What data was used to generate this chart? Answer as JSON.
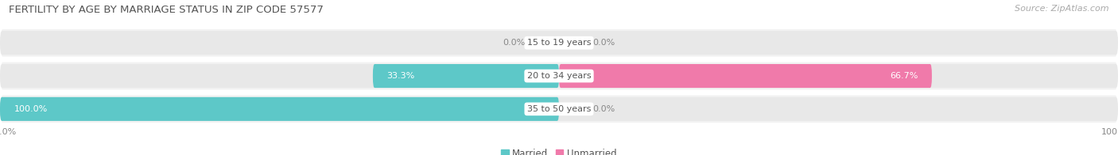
{
  "title": "FERTILITY BY AGE BY MARRIAGE STATUS IN ZIP CODE 57577",
  "source": "Source: ZipAtlas.com",
  "categories": [
    "15 to 19 years",
    "20 to 34 years",
    "35 to 50 years"
  ],
  "married_pct": [
    0.0,
    33.3,
    100.0
  ],
  "unmarried_pct": [
    0.0,
    66.7,
    0.0
  ],
  "married_color": "#5dc8c8",
  "unmarried_color": "#f07aaa",
  "bar_bg_color": "#e8e8e8",
  "row_bg_color": "#f2f2f2",
  "title_fontsize": 9.5,
  "label_fontsize": 8.0,
  "source_fontsize": 8.0,
  "tick_fontsize": 8.0,
  "legend_fontsize": 8.5,
  "fig_width": 14.06,
  "fig_height": 1.96,
  "dpi": 100
}
